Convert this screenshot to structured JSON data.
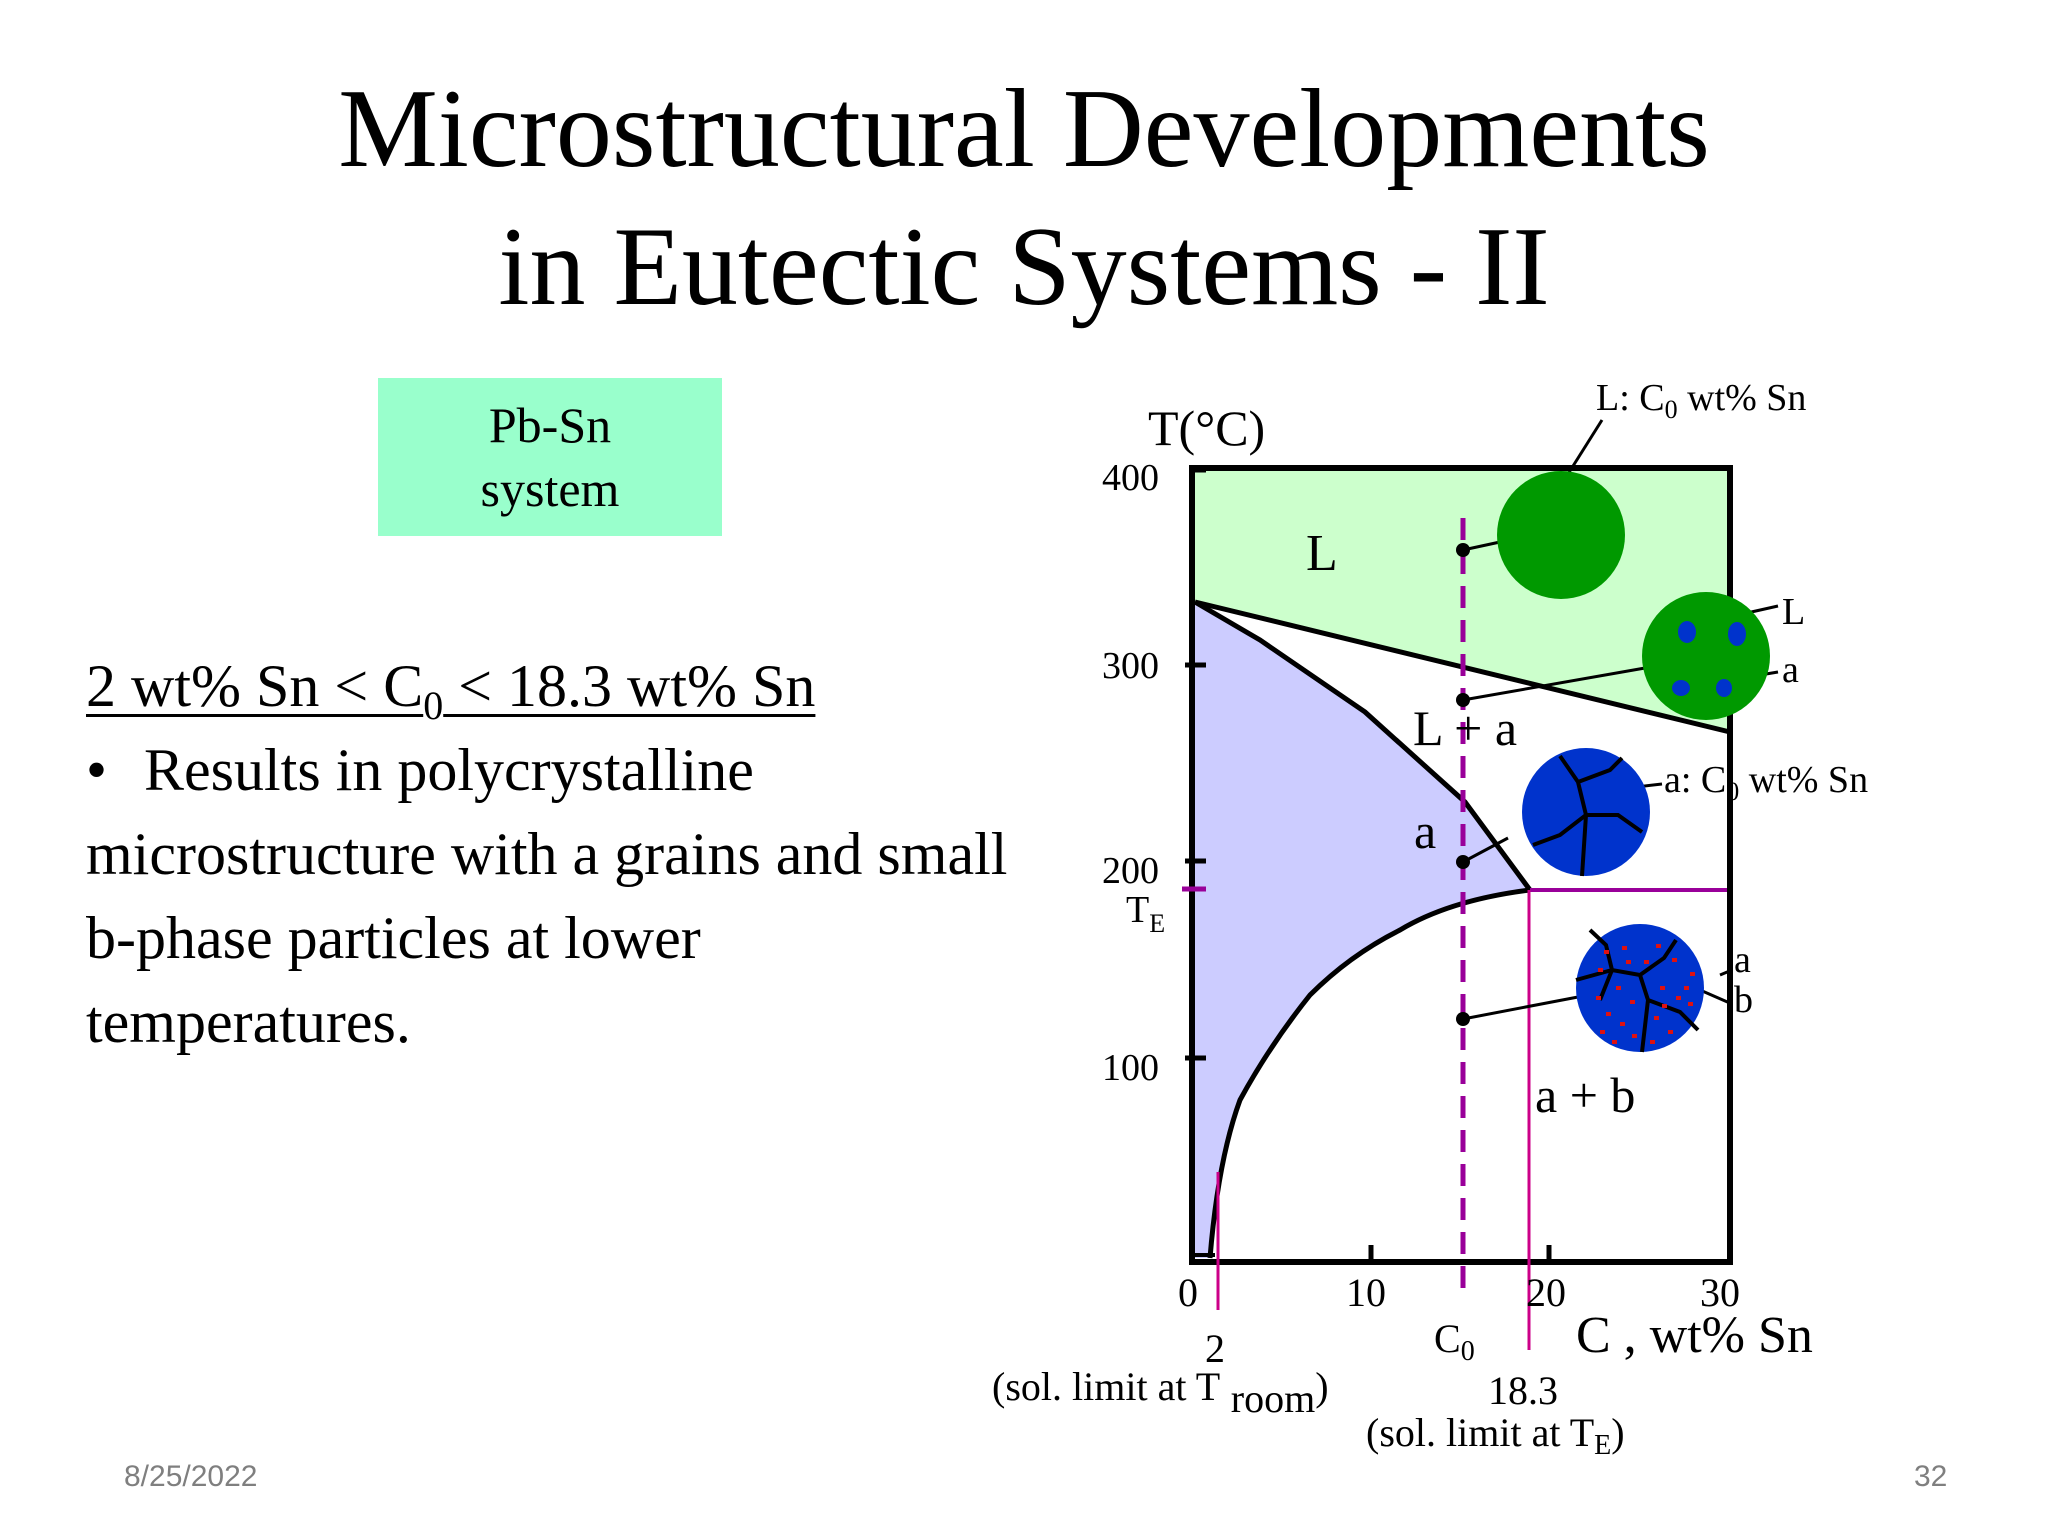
{
  "slide": {
    "title_line1": "Microstructural Developments",
    "title_line2": "in Eutectic Systems - II",
    "date": "8/25/2022",
    "page_number": "32"
  },
  "system_box": {
    "line1": "Pb-Sn",
    "line2": "system"
  },
  "condition": {
    "prefix": "2 wt% Sn < C",
    "sub": "0",
    "suffix": " < 18.3 wt% Sn"
  },
  "bullet": {
    "text": "Results in polycrystalline microstructure with a grains and small b-phase particles at lower temperatures."
  },
  "diagram": {
    "y_axis_label": "T(°C)",
    "y_ticks": [
      "400",
      "300",
      "200",
      "100"
    ],
    "te_label": "T",
    "te_sub": "E",
    "x_ticks": [
      "0",
      "10",
      "20",
      "30"
    ],
    "x_axis_label": "C , wt% Sn",
    "regions": {
      "liquid": "L",
      "liquid_alpha": "L + a",
      "alpha": "a",
      "alpha_beta": "a + b"
    },
    "c0": {
      "label": "C",
      "sub": "0"
    },
    "marker_2": {
      "value": "2",
      "caption": "(sol. limit at T",
      "caption_sub": "room",
      "caption_end": ")"
    },
    "marker_18": {
      "value": "18.3",
      "caption": "(sol. limit at T",
      "caption_sub": "E",
      "caption_end": ")"
    },
    "callouts": {
      "liquid_comp": "L:  C",
      "liquid_comp_sub": "0",
      "liquid_comp_end": " wt% Sn",
      "l_label": "L",
      "a_label": "a",
      "alpha_comp": "a: C",
      "alpha_comp_sub": "0",
      "alpha_comp_end": " wt% Sn",
      "a2_label": "a",
      "b_label": "b"
    },
    "colors": {
      "liquid_region": "#ccffcc",
      "alpha_region": "#ccccff",
      "liquid_particle": "#009900",
      "alpha_grain": "#0033cc",
      "beta_particle": "#dd1111",
      "c0_line": "#990099",
      "marker_line": "#cc0088"
    }
  }
}
